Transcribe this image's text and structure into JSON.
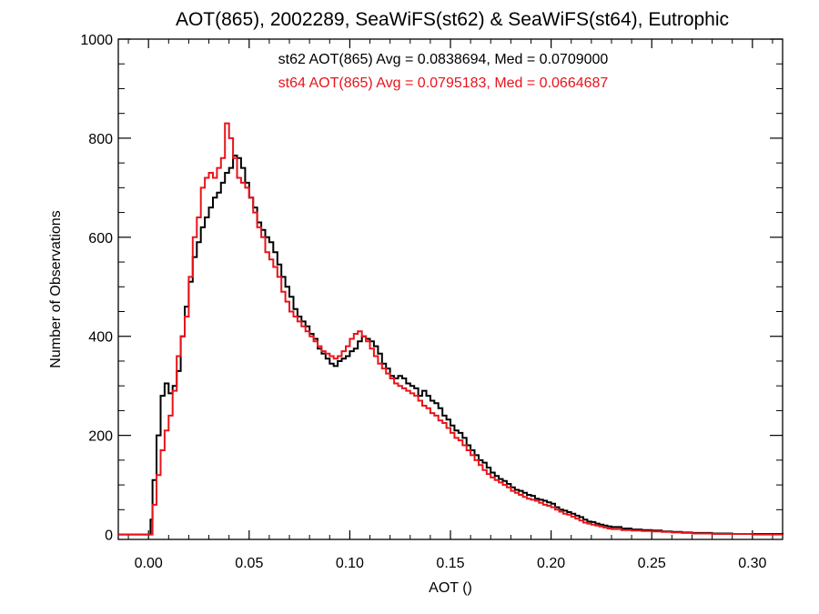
{
  "chart_data": {
    "type": "line",
    "title": "AOT(865), 2002289, SeaWiFS(st62) & SeaWiFS(st64), Eutrophic",
    "xlabel": "AOT ()",
    "ylabel": "Number of Observations",
    "xlim": [
      -0.015,
      0.315
    ],
    "ylim": [
      -10,
      1000
    ],
    "xticks": [
      0.0,
      0.05,
      0.1,
      0.15,
      0.2,
      0.25,
      0.3
    ],
    "xtick_labels": [
      "0.00",
      "0.05",
      "0.10",
      "0.15",
      "0.20",
      "0.25",
      "0.30"
    ],
    "yticks": [
      0,
      200,
      400,
      600,
      800,
      1000
    ],
    "ytick_labels": [
      "0",
      "200",
      "400",
      "600",
      "800",
      "1000"
    ],
    "grid": false,
    "stats": [
      {
        "text": "st62 AOT(865) Avg = 0.0838694, Med = 0.0709000",
        "color": "#000000"
      },
      {
        "text": "st64 AOT(865) Avg = 0.0795183, Med = 0.0664687",
        "color": "#e8141b"
      }
    ],
    "series": [
      {
        "color": "#000000",
        "points": [
          [
            0.0,
            0
          ],
          [
            0.001,
            30
          ],
          [
            0.002,
            110
          ],
          [
            0.004,
            200
          ],
          [
            0.006,
            280
          ],
          [
            0.008,
            305
          ],
          [
            0.01,
            285
          ],
          [
            0.012,
            300
          ],
          [
            0.014,
            330
          ],
          [
            0.016,
            400
          ],
          [
            0.018,
            460
          ],
          [
            0.02,
            510
          ],
          [
            0.022,
            560
          ],
          [
            0.024,
            590
          ],
          [
            0.026,
            620
          ],
          [
            0.028,
            640
          ],
          [
            0.03,
            660
          ],
          [
            0.032,
            680
          ],
          [
            0.034,
            690
          ],
          [
            0.036,
            710
          ],
          [
            0.038,
            730
          ],
          [
            0.04,
            740
          ],
          [
            0.042,
            765
          ],
          [
            0.044,
            760
          ],
          [
            0.046,
            740
          ],
          [
            0.048,
            710
          ],
          [
            0.05,
            680
          ],
          [
            0.052,
            660
          ],
          [
            0.054,
            630
          ],
          [
            0.056,
            615
          ],
          [
            0.058,
            600
          ],
          [
            0.06,
            590
          ],
          [
            0.062,
            570
          ],
          [
            0.064,
            545
          ],
          [
            0.066,
            520
          ],
          [
            0.068,
            500
          ],
          [
            0.07,
            480
          ],
          [
            0.072,
            455
          ],
          [
            0.074,
            440
          ],
          [
            0.076,
            430
          ],
          [
            0.078,
            420
          ],
          [
            0.08,
            405
          ],
          [
            0.082,
            395
          ],
          [
            0.084,
            375
          ],
          [
            0.086,
            365
          ],
          [
            0.088,
            355
          ],
          [
            0.09,
            345
          ],
          [
            0.092,
            340
          ],
          [
            0.094,
            350
          ],
          [
            0.096,
            355
          ],
          [
            0.098,
            360
          ],
          [
            0.1,
            370
          ],
          [
            0.102,
            375
          ],
          [
            0.104,
            390
          ],
          [
            0.106,
            400
          ],
          [
            0.108,
            395
          ],
          [
            0.11,
            390
          ],
          [
            0.112,
            380
          ],
          [
            0.114,
            365
          ],
          [
            0.116,
            345
          ],
          [
            0.118,
            335
          ],
          [
            0.12,
            320
          ],
          [
            0.122,
            315
          ],
          [
            0.124,
            320
          ],
          [
            0.126,
            315
          ],
          [
            0.128,
            305
          ],
          [
            0.13,
            300
          ],
          [
            0.132,
            295
          ],
          [
            0.134,
            280
          ],
          [
            0.136,
            290
          ],
          [
            0.138,
            280
          ],
          [
            0.14,
            270
          ],
          [
            0.142,
            265
          ],
          [
            0.144,
            255
          ],
          [
            0.146,
            240
          ],
          [
            0.148,
            232
          ],
          [
            0.15,
            220
          ],
          [
            0.152,
            210
          ],
          [
            0.154,
            205
          ],
          [
            0.156,
            195
          ],
          [
            0.158,
            180
          ],
          [
            0.16,
            170
          ],
          [
            0.162,
            160
          ],
          [
            0.164,
            150
          ],
          [
            0.166,
            145
          ],
          [
            0.168,
            135
          ],
          [
            0.17,
            125
          ],
          [
            0.172,
            118
          ],
          [
            0.174,
            112
          ],
          [
            0.176,
            108
          ],
          [
            0.178,
            102
          ],
          [
            0.18,
            95
          ],
          [
            0.182,
            90
          ],
          [
            0.184,
            88
          ],
          [
            0.186,
            84
          ],
          [
            0.188,
            80
          ],
          [
            0.19,
            78
          ],
          [
            0.192,
            72
          ],
          [
            0.194,
            70
          ],
          [
            0.196,
            68
          ],
          [
            0.198,
            65
          ],
          [
            0.2,
            62
          ],
          [
            0.202,
            55
          ],
          [
            0.204,
            50
          ],
          [
            0.206,
            48
          ],
          [
            0.208,
            45
          ],
          [
            0.21,
            42
          ],
          [
            0.212,
            38
          ],
          [
            0.214,
            35
          ],
          [
            0.216,
            30
          ],
          [
            0.218,
            26
          ],
          [
            0.22,
            25
          ],
          [
            0.222,
            22
          ],
          [
            0.224,
            20
          ],
          [
            0.226,
            18
          ],
          [
            0.228,
            16
          ],
          [
            0.23,
            15
          ],
          [
            0.235,
            12
          ],
          [
            0.24,
            10
          ],
          [
            0.245,
            9
          ],
          [
            0.25,
            8
          ],
          [
            0.255,
            6
          ],
          [
            0.26,
            5
          ],
          [
            0.265,
            4
          ],
          [
            0.27,
            3
          ],
          [
            0.28,
            2
          ],
          [
            0.29,
            1
          ],
          [
            0.3,
            1
          ],
          [
            0.31,
            1
          ],
          [
            0.315,
            0
          ]
        ]
      },
      {
        "color": "#e8141b",
        "points": [
          [
            0.0,
            0
          ],
          [
            0.002,
            60
          ],
          [
            0.004,
            120
          ],
          [
            0.006,
            170
          ],
          [
            0.008,
            210
          ],
          [
            0.01,
            240
          ],
          [
            0.012,
            290
          ],
          [
            0.014,
            360
          ],
          [
            0.016,
            400
          ],
          [
            0.018,
            440
          ],
          [
            0.02,
            520
          ],
          [
            0.022,
            600
          ],
          [
            0.024,
            640
          ],
          [
            0.026,
            700
          ],
          [
            0.028,
            720
          ],
          [
            0.03,
            730
          ],
          [
            0.032,
            720
          ],
          [
            0.034,
            740
          ],
          [
            0.036,
            760
          ],
          [
            0.038,
            830
          ],
          [
            0.04,
            800
          ],
          [
            0.042,
            760
          ],
          [
            0.044,
            720
          ],
          [
            0.046,
            710
          ],
          [
            0.048,
            700
          ],
          [
            0.05,
            680
          ],
          [
            0.052,
            650
          ],
          [
            0.054,
            620
          ],
          [
            0.056,
            600
          ],
          [
            0.058,
            570
          ],
          [
            0.06,
            555
          ],
          [
            0.062,
            540
          ],
          [
            0.064,
            520
          ],
          [
            0.066,
            490
          ],
          [
            0.068,
            470
          ],
          [
            0.07,
            450
          ],
          [
            0.072,
            440
          ],
          [
            0.074,
            430
          ],
          [
            0.076,
            420
          ],
          [
            0.078,
            410
          ],
          [
            0.08,
            400
          ],
          [
            0.082,
            390
          ],
          [
            0.084,
            380
          ],
          [
            0.086,
            370
          ],
          [
            0.088,
            365
          ],
          [
            0.09,
            360
          ],
          [
            0.092,
            355
          ],
          [
            0.094,
            360
          ],
          [
            0.096,
            370
          ],
          [
            0.098,
            380
          ],
          [
            0.1,
            395
          ],
          [
            0.102,
            405
          ],
          [
            0.104,
            410
          ],
          [
            0.106,
            400
          ],
          [
            0.108,
            390
          ],
          [
            0.11,
            375
          ],
          [
            0.112,
            360
          ],
          [
            0.114,
            345
          ],
          [
            0.116,
            335
          ],
          [
            0.118,
            325
          ],
          [
            0.12,
            315
          ],
          [
            0.122,
            305
          ],
          [
            0.124,
            300
          ],
          [
            0.126,
            295
          ],
          [
            0.128,
            290
          ],
          [
            0.13,
            285
          ],
          [
            0.132,
            280
          ],
          [
            0.134,
            270
          ],
          [
            0.136,
            260
          ],
          [
            0.138,
            255
          ],
          [
            0.14,
            245
          ],
          [
            0.142,
            240
          ],
          [
            0.144,
            230
          ],
          [
            0.146,
            225
          ],
          [
            0.148,
            215
          ],
          [
            0.15,
            205
          ],
          [
            0.152,
            195
          ],
          [
            0.154,
            190
          ],
          [
            0.156,
            180
          ],
          [
            0.158,
            170
          ],
          [
            0.16,
            160
          ],
          [
            0.162,
            150
          ],
          [
            0.164,
            140
          ],
          [
            0.166,
            130
          ],
          [
            0.168,
            122
          ],
          [
            0.17,
            115
          ],
          [
            0.172,
            110
          ],
          [
            0.174,
            105
          ],
          [
            0.176,
            100
          ],
          [
            0.178,
            95
          ],
          [
            0.18,
            88
          ],
          [
            0.182,
            84
          ],
          [
            0.184,
            80
          ],
          [
            0.186,
            76
          ],
          [
            0.188,
            72
          ],
          [
            0.19,
            70
          ],
          [
            0.192,
            68
          ],
          [
            0.194,
            64
          ],
          [
            0.196,
            60
          ],
          [
            0.198,
            58
          ],
          [
            0.2,
            55
          ],
          [
            0.202,
            50
          ],
          [
            0.204,
            46
          ],
          [
            0.206,
            42
          ],
          [
            0.208,
            40
          ],
          [
            0.21,
            36
          ],
          [
            0.212,
            32
          ],
          [
            0.214,
            28
          ],
          [
            0.216,
            24
          ],
          [
            0.218,
            22
          ],
          [
            0.22,
            20
          ],
          [
            0.222,
            18
          ],
          [
            0.224,
            16
          ],
          [
            0.226,
            14
          ],
          [
            0.228,
            12
          ],
          [
            0.23,
            11
          ],
          [
            0.235,
            9
          ],
          [
            0.24,
            8
          ],
          [
            0.245,
            7
          ],
          [
            0.25,
            6
          ],
          [
            0.255,
            5
          ],
          [
            0.26,
            4
          ],
          [
            0.265,
            3
          ],
          [
            0.27,
            2
          ],
          [
            0.28,
            1
          ],
          [
            0.29,
            1
          ],
          [
            0.3,
            0
          ],
          [
            0.315,
            0
          ]
        ]
      }
    ]
  }
}
